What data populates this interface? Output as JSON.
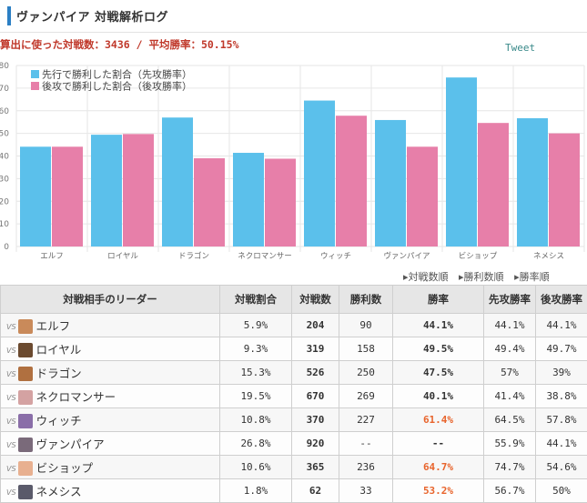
{
  "header": {
    "title": "ヴァンパイア 対戦解析ログ"
  },
  "stats": {
    "text": "算出に使った対戦数：3436 / 平均勝率：50.15%"
  },
  "tweet": {
    "label": "Tweet"
  },
  "chart_data": {
    "type": "bar",
    "categories": [
      "エルフ",
      "ロイヤル",
      "ドラゴン",
      "ネクロマンサー",
      "ウィッチ",
      "ヴァンパイア",
      "ビショップ",
      "ネメシス"
    ],
    "series": [
      {
        "name": "先行で勝利した割合（先攻勝率）",
        "values": [
          44.1,
          49.4,
          57,
          41.4,
          64.5,
          55.9,
          74.7,
          56.7
        ],
        "color": "#5bc0eb"
      },
      {
        "name": "後攻で勝利した割合（後攻勝率）",
        "values": [
          44.1,
          49.7,
          39,
          38.8,
          57.8,
          44.1,
          54.6,
          50
        ],
        "color": "#e77fa9"
      }
    ],
    "yticks": [
      "0",
      "10",
      "20",
      "30",
      "40",
      "50",
      "60",
      "70",
      "80"
    ],
    "ylim": [
      0,
      80
    ],
    "grid": true,
    "legend_position": "top-left"
  },
  "sort": {
    "by_matches": "▸対戦数順",
    "by_wins": "▸勝利数順",
    "by_rate": "▸勝率順"
  },
  "table": {
    "headers": {
      "leader": "対戦相手のリーダー",
      "share": "対戦割合",
      "matches": "対戦数",
      "wins": "勝利数",
      "winrate": "勝率",
      "first": "先攻勝率",
      "second": "後攻勝率"
    },
    "vs_label": "VS",
    "rows": [
      {
        "leader": "エルフ",
        "share": "5.9%",
        "matches": "204",
        "wins": "90",
        "winrate": "44.1%",
        "first": "44.1%",
        "second": "44.1%",
        "avatar": "#c98a5a"
      },
      {
        "leader": "ロイヤル",
        "share": "9.3%",
        "matches": "319",
        "wins": "158",
        "winrate": "49.5%",
        "first": "49.4%",
        "second": "49.7%",
        "avatar": "#6b4a2f"
      },
      {
        "leader": "ドラゴン",
        "share": "15.3%",
        "matches": "526",
        "wins": "250",
        "winrate": "47.5%",
        "first": "57%",
        "second": "39%",
        "avatar": "#b07040"
      },
      {
        "leader": "ネクロマンサー",
        "share": "19.5%",
        "matches": "670",
        "wins": "269",
        "winrate": "40.1%",
        "first": "41.4%",
        "second": "38.8%",
        "avatar": "#d4a2a2"
      },
      {
        "leader": "ウィッチ",
        "share": "10.8%",
        "matches": "370",
        "wins": "227",
        "winrate": "61.4%",
        "first": "64.5%",
        "second": "57.8%",
        "avatar": "#8a6ea8"
      },
      {
        "leader": "ヴァンパイア",
        "share": "26.8%",
        "matches": "920",
        "wins": "--",
        "winrate": "--",
        "first": "55.9%",
        "second": "44.1%",
        "avatar": "#7a6a7a"
      },
      {
        "leader": "ビショップ",
        "share": "10.6%",
        "matches": "365",
        "wins": "236",
        "winrate": "64.7%",
        "first": "74.7%",
        "second": "54.6%",
        "avatar": "#e8b090"
      },
      {
        "leader": "ネメシス",
        "share": "1.8%",
        "matches": "62",
        "wins": "33",
        "winrate": "53.2%",
        "first": "56.7%",
        "second": "50%",
        "avatar": "#5a5a6a"
      }
    ]
  }
}
